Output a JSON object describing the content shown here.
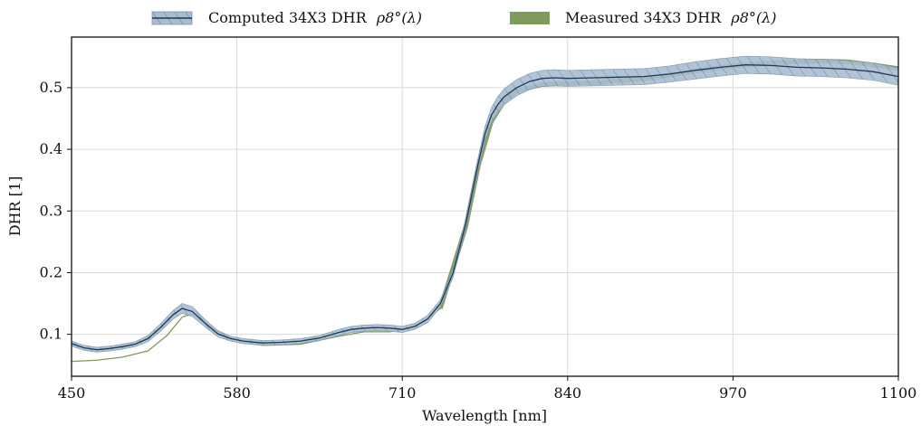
{
  "chart_data": {
    "type": "line",
    "xlabel": "Wavelength [nm]",
    "ylabel": "DHR [1]",
    "xlim": [
      450,
      1100
    ],
    "ylim": [
      0.032,
      0.582
    ],
    "xticks": [
      450,
      580,
      710,
      840,
      970,
      1100
    ],
    "xtick_labels": [
      "450",
      "580",
      "710",
      "840",
      "970",
      "1100"
    ],
    "yticks": [
      0.1,
      0.2,
      0.3,
      0.4,
      0.5
    ],
    "ytick_labels": [
      "0.1",
      "0.2",
      "0.3",
      "0.4",
      "0.5"
    ],
    "grid": true,
    "legend_position": "top-center, outside plot",
    "series": [
      {
        "name": "Computed 34X3 DHR ρ8°(λ)",
        "legend_label": "Computed 34X3 DHR",
        "legend_math": "ρ8°(λ)",
        "style": "line with hatched uncertainty band",
        "color": "#1b3a57",
        "band_color": "#9fb4c7",
        "x": [
          450,
          460,
          470,
          480,
          490,
          500,
          510,
          520,
          530,
          537,
          545,
          555,
          565,
          575,
          585,
          600,
          615,
          630,
          645,
          660,
          670,
          680,
          690,
          700,
          710,
          720,
          730,
          740,
          750,
          760,
          765,
          770,
          775,
          780,
          785,
          790,
          800,
          810,
          820,
          830,
          840,
          860,
          880,
          900,
          920,
          940,
          960,
          980,
          1000,
          1020,
          1040,
          1060,
          1080,
          1100
        ],
        "y": [
          0.085,
          0.078,
          0.075,
          0.077,
          0.08,
          0.084,
          0.093,
          0.111,
          0.132,
          0.142,
          0.137,
          0.118,
          0.101,
          0.093,
          0.089,
          0.086,
          0.087,
          0.089,
          0.094,
          0.103,
          0.108,
          0.11,
          0.111,
          0.11,
          0.108,
          0.113,
          0.125,
          0.15,
          0.2,
          0.28,
          0.33,
          0.38,
          0.425,
          0.455,
          0.472,
          0.485,
          0.5,
          0.51,
          0.515,
          0.516,
          0.515,
          0.516,
          0.517,
          0.518,
          0.522,
          0.528,
          0.533,
          0.537,
          0.536,
          0.533,
          0.532,
          0.53,
          0.526,
          0.518
        ],
        "band": [
          0.004,
          0.004,
          0.004,
          0.004,
          0.004,
          0.004,
          0.005,
          0.006,
          0.007,
          0.008,
          0.008,
          0.006,
          0.005,
          0.004,
          0.004,
          0.004,
          0.004,
          0.004,
          0.004,
          0.005,
          0.005,
          0.005,
          0.005,
          0.005,
          0.005,
          0.005,
          0.006,
          0.006,
          0.007,
          0.008,
          0.009,
          0.01,
          0.011,
          0.012,
          0.013,
          0.013,
          0.013,
          0.013,
          0.013,
          0.013,
          0.013,
          0.013,
          0.013,
          0.013,
          0.013,
          0.014,
          0.014,
          0.014,
          0.014,
          0.014,
          0.014,
          0.014,
          0.014,
          0.014
        ]
      },
      {
        "name": "Measured 34X3 DHR ρ8°(λ)",
        "legend_label": "Measured 34X3 DHR",
        "legend_math": "ρ8°(λ)",
        "style": "thin line (below 700 nm) and thick band (above)",
        "color": "#7e9a5c",
        "x": [
          450,
          470,
          490,
          510,
          525,
          537,
          545,
          560,
          575,
          600,
          630,
          660,
          680,
          700,
          720,
          740,
          760,
          770,
          780,
          790,
          800,
          820,
          840,
          860,
          880,
          900,
          920,
          940,
          960,
          980,
          1000,
          1020,
          1040,
          1060,
          1080,
          1100
        ],
        "y": [
          0.056,
          0.058,
          0.063,
          0.073,
          0.098,
          0.128,
          0.133,
          0.111,
          0.094,
          0.082,
          0.084,
          0.097,
          0.104,
          0.104,
          0.11,
          0.142,
          0.275,
          0.375,
          0.445,
          0.478,
          0.495,
          0.505,
          0.507,
          0.508,
          0.511,
          0.514,
          0.52,
          0.527,
          0.533,
          0.537,
          0.54,
          0.542,
          0.543,
          0.542,
          0.537,
          0.531
        ]
      }
    ]
  }
}
